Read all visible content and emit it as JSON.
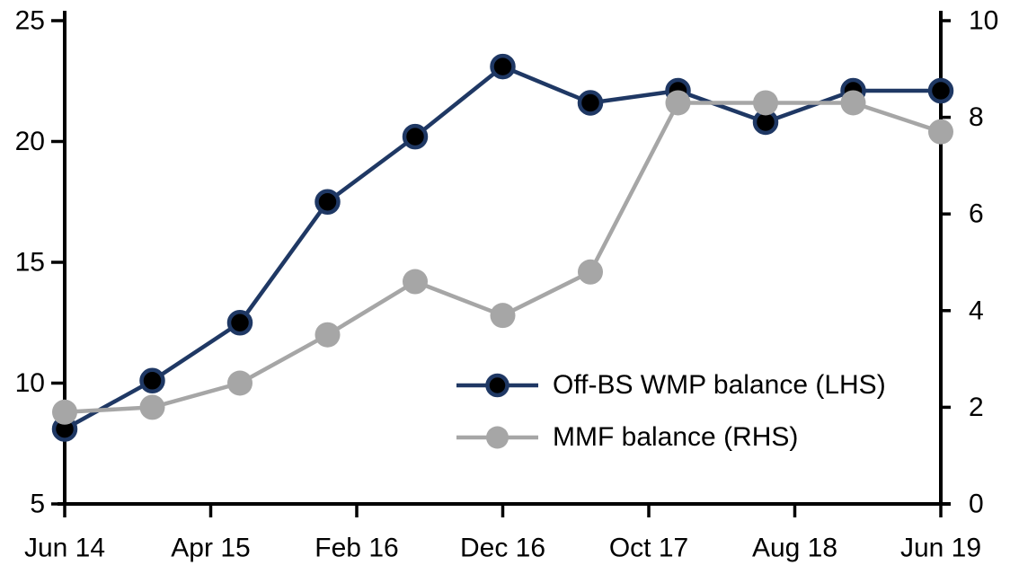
{
  "chart_data": {
    "type": "line",
    "title": "",
    "xlabel": "",
    "ylabel_left": "",
    "ylabel_right": "",
    "grid": false,
    "axis_color": "#000000",
    "text_color": "#000000",
    "x_tick_labels": [
      "Jun 14",
      "Apr 15",
      "Feb 16",
      "Dec 16",
      "Oct 17",
      "Aug 18",
      "Jun 19"
    ],
    "x_points": [
      "Jun 14",
      "Dec 14",
      "Jun 15",
      "Dec 15",
      "Jun 16",
      "Dec 16",
      "Jun 17",
      "Dec 17",
      "Jun 18",
      "Dec 18",
      "Jun 19"
    ],
    "left_axis": {
      "range": [
        5,
        25
      ],
      "ticks": [
        25,
        20,
        15,
        10,
        5
      ]
    },
    "right_axis": {
      "range": [
        0,
        10
      ],
      "ticks": [
        10,
        8,
        6,
        4,
        2,
        0
      ]
    },
    "series": [
      {
        "name": "Off-BS WMP balance (LHS)",
        "axis": "left",
        "color": "#1f3864",
        "marker_fill": "#000000",
        "values": [
          8.1,
          10.1,
          12.5,
          17.5,
          20.2,
          23.1,
          21.6,
          22.1,
          20.8,
          22.1,
          22.1
        ]
      },
      {
        "name": "MMF balance (RHS)",
        "axis": "right",
        "color": "#a6a6a6",
        "marker_fill": "#a6a6a6",
        "values": [
          1.9,
          2.0,
          2.5,
          3.5,
          4.6,
          3.9,
          4.8,
          8.3,
          8.3,
          8.3,
          7.7
        ]
      }
    ],
    "legend": {
      "position": "inside-lower-middle",
      "items": [
        "Off-BS WMP balance (LHS)",
        "MMF balance (RHS)"
      ]
    }
  }
}
